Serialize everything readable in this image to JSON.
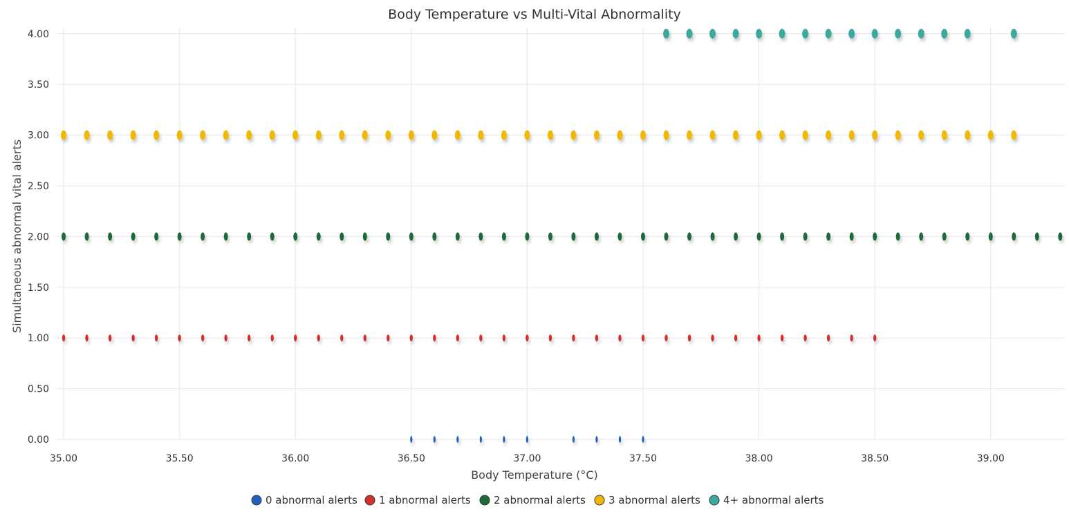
{
  "chart_data": {
    "type": "scatter",
    "title": "Body Temperature vs Multi-Vital Abnormality",
    "xlabel": "Body Temperature (°C)",
    "ylabel": "Simultaneous abnormal vital alerts",
    "xlim": [
      34.97,
      39.32
    ],
    "ylim": [
      0,
      4.06
    ],
    "x_ticks": [
      "35.00",
      "35.50",
      "36.00",
      "36.50",
      "37.00",
      "37.50",
      "38.00",
      "38.50",
      "39.00"
    ],
    "y_ticks": [
      "0.00",
      "0.50",
      "1.00",
      "1.50",
      "2.00",
      "2.50",
      "3.00",
      "3.50",
      "4.00"
    ],
    "grid": true,
    "legend_position": "bottom-center",
    "series": [
      {
        "name": "0 abnormal alerts",
        "color": "#1f5fbf",
        "points": [
          [
            36.5,
            0
          ],
          [
            36.6,
            0
          ],
          [
            36.7,
            0
          ],
          [
            36.8,
            0
          ],
          [
            36.9,
            0
          ],
          [
            37.0,
            0
          ],
          [
            37.2,
            0
          ],
          [
            37.3,
            0
          ],
          [
            37.4,
            0
          ],
          [
            37.5,
            0
          ]
        ]
      },
      {
        "name": "1 abnormal alerts",
        "color": "#d32f2f",
        "points": [
          [
            35.0,
            1
          ],
          [
            35.1,
            1
          ],
          [
            35.2,
            1
          ],
          [
            35.3,
            1
          ],
          [
            35.4,
            1
          ],
          [
            35.5,
            1
          ],
          [
            35.6,
            1
          ],
          [
            35.7,
            1
          ],
          [
            35.8,
            1
          ],
          [
            35.9,
            1
          ],
          [
            36.0,
            1
          ],
          [
            36.1,
            1
          ],
          [
            36.2,
            1
          ],
          [
            36.3,
            1
          ],
          [
            36.4,
            1
          ],
          [
            36.5,
            1
          ],
          [
            36.6,
            1
          ],
          [
            36.7,
            1
          ],
          [
            36.8,
            1
          ],
          [
            36.9,
            1
          ],
          [
            37.0,
            1
          ],
          [
            37.1,
            1
          ],
          [
            37.2,
            1
          ],
          [
            37.3,
            1
          ],
          [
            37.4,
            1
          ],
          [
            37.5,
            1
          ],
          [
            37.6,
            1
          ],
          [
            37.7,
            1
          ],
          [
            37.8,
            1
          ],
          [
            37.9,
            1
          ],
          [
            38.0,
            1
          ],
          [
            38.1,
            1
          ],
          [
            38.2,
            1
          ],
          [
            38.3,
            1
          ],
          [
            38.4,
            1
          ],
          [
            38.5,
            1
          ]
        ]
      },
      {
        "name": "2 abnormal alerts",
        "color": "#1b6b35",
        "points": [
          [
            35.0,
            2
          ],
          [
            35.1,
            2
          ],
          [
            35.2,
            2
          ],
          [
            35.3,
            2
          ],
          [
            35.4,
            2
          ],
          [
            35.5,
            2
          ],
          [
            35.6,
            2
          ],
          [
            35.7,
            2
          ],
          [
            35.8,
            2
          ],
          [
            35.9,
            2
          ],
          [
            36.0,
            2
          ],
          [
            36.1,
            2
          ],
          [
            36.2,
            2
          ],
          [
            36.3,
            2
          ],
          [
            36.4,
            2
          ],
          [
            36.5,
            2
          ],
          [
            36.6,
            2
          ],
          [
            36.7,
            2
          ],
          [
            36.8,
            2
          ],
          [
            36.9,
            2
          ],
          [
            37.0,
            2
          ],
          [
            37.1,
            2
          ],
          [
            37.2,
            2
          ],
          [
            37.3,
            2
          ],
          [
            37.4,
            2
          ],
          [
            37.5,
            2
          ],
          [
            37.6,
            2
          ],
          [
            37.7,
            2
          ],
          [
            37.8,
            2
          ],
          [
            37.9,
            2
          ],
          [
            38.0,
            2
          ],
          [
            38.1,
            2
          ],
          [
            38.2,
            2
          ],
          [
            38.3,
            2
          ],
          [
            38.4,
            2
          ],
          [
            38.5,
            2
          ],
          [
            38.6,
            2
          ],
          [
            38.7,
            2
          ],
          [
            38.8,
            2
          ],
          [
            38.9,
            2
          ],
          [
            39.0,
            2
          ],
          [
            39.1,
            2
          ],
          [
            39.2,
            2
          ],
          [
            39.3,
            2
          ]
        ]
      },
      {
        "name": "3 abnormal alerts",
        "color": "#f2b705",
        "points": [
          [
            35.0,
            3
          ],
          [
            35.1,
            3
          ],
          [
            35.2,
            3
          ],
          [
            35.3,
            3
          ],
          [
            35.4,
            3
          ],
          [
            35.5,
            3
          ],
          [
            35.6,
            3
          ],
          [
            35.7,
            3
          ],
          [
            35.8,
            3
          ],
          [
            35.9,
            3
          ],
          [
            36.0,
            3
          ],
          [
            36.1,
            3
          ],
          [
            36.2,
            3
          ],
          [
            36.3,
            3
          ],
          [
            36.4,
            3
          ],
          [
            36.5,
            3
          ],
          [
            36.6,
            3
          ],
          [
            36.7,
            3
          ],
          [
            36.8,
            3
          ],
          [
            36.9,
            3
          ],
          [
            37.0,
            3
          ],
          [
            37.1,
            3
          ],
          [
            37.2,
            3
          ],
          [
            37.3,
            3
          ],
          [
            37.4,
            3
          ],
          [
            37.5,
            3
          ],
          [
            37.6,
            3
          ],
          [
            37.7,
            3
          ],
          [
            37.8,
            3
          ],
          [
            37.9,
            3
          ],
          [
            38.0,
            3
          ],
          [
            38.1,
            3
          ],
          [
            38.2,
            3
          ],
          [
            38.3,
            3
          ],
          [
            38.4,
            3
          ],
          [
            38.5,
            3
          ],
          [
            38.6,
            3
          ],
          [
            38.7,
            3
          ],
          [
            38.8,
            3
          ],
          [
            38.9,
            3
          ],
          [
            39.0,
            3
          ],
          [
            39.1,
            3
          ]
        ]
      },
      {
        "name": "4+ abnormal alerts",
        "color": "#3aa99f",
        "points": [
          [
            37.6,
            4
          ],
          [
            37.7,
            4
          ],
          [
            37.8,
            4
          ],
          [
            37.9,
            4
          ],
          [
            38.0,
            4
          ],
          [
            38.1,
            4
          ],
          [
            38.2,
            4
          ],
          [
            38.3,
            4
          ],
          [
            38.4,
            4
          ],
          [
            38.5,
            4
          ],
          [
            38.6,
            4
          ],
          [
            38.7,
            4
          ],
          [
            38.8,
            4
          ],
          [
            38.9,
            4
          ],
          [
            39.1,
            4
          ]
        ]
      }
    ]
  }
}
